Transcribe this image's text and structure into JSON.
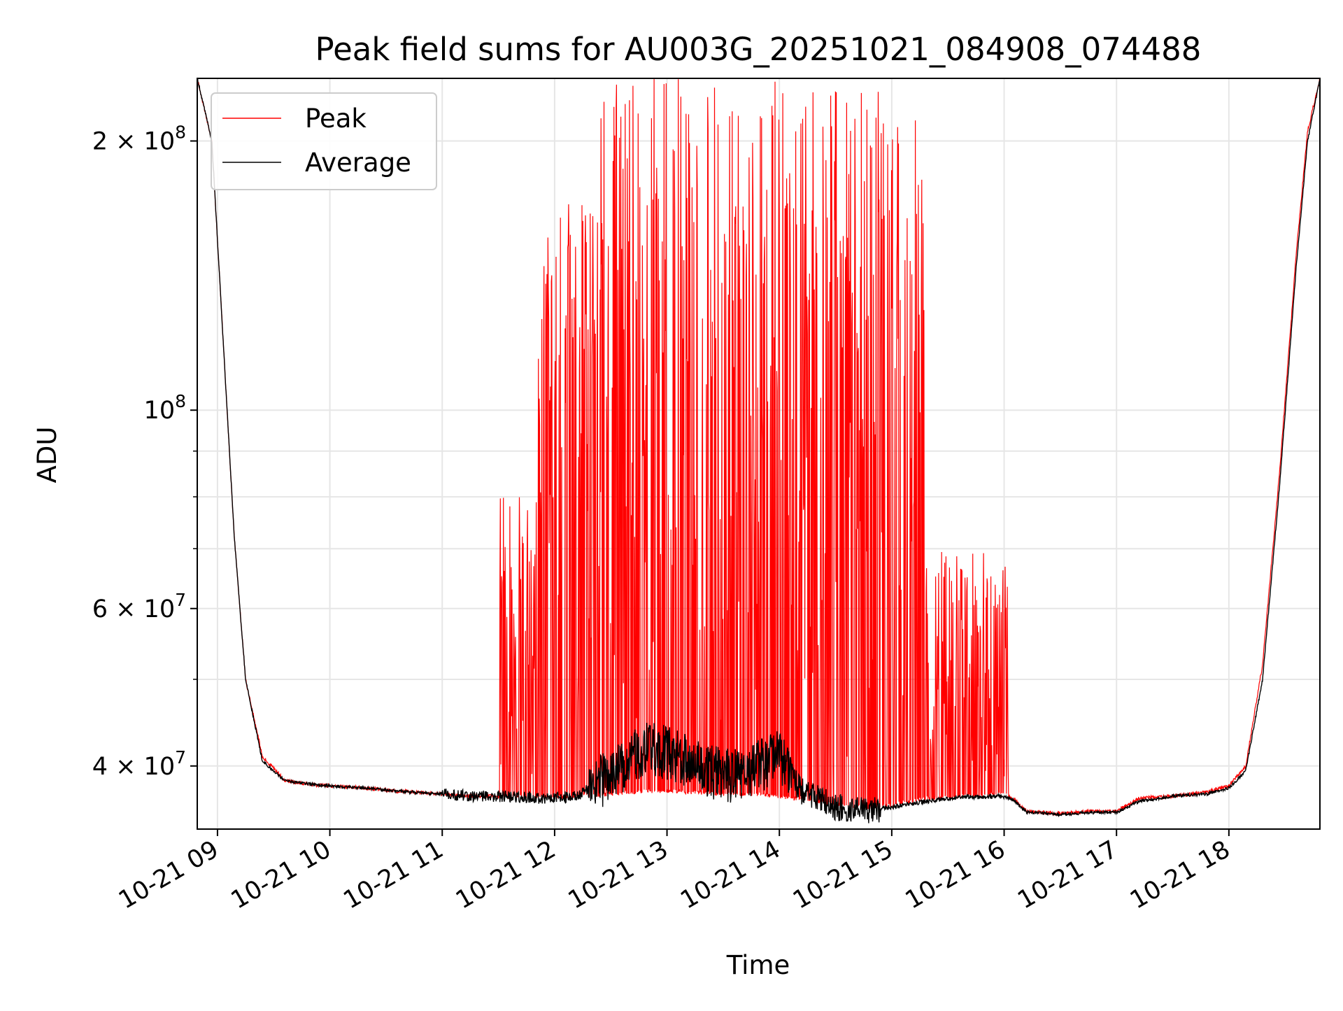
{
  "chart_data": {
    "type": "line",
    "title": "Peak field sums for AU003G_20251021_084908_074488",
    "xlabel": "Time",
    "ylabel": "ADU",
    "yscale": "log",
    "grid": true,
    "legend_position": "upper-left",
    "x_unit": "hour of day",
    "xlim": [
      8.82,
      18.81
    ],
    "ylim": [
      34000000,
      235000000
    ],
    "x_ticks": [
      {
        "value": 9,
        "label": "10-21 09"
      },
      {
        "value": 10,
        "label": "10-21 10"
      },
      {
        "value": 11,
        "label": "10-21 11"
      },
      {
        "value": 12,
        "label": "10-21 12"
      },
      {
        "value": 13,
        "label": "10-21 13"
      },
      {
        "value": 14,
        "label": "10-21 14"
      },
      {
        "value": 15,
        "label": "10-21 15"
      },
      {
        "value": 16,
        "label": "10-21 16"
      },
      {
        "value": 17,
        "label": "10-21 17"
      },
      {
        "value": 18,
        "label": "10-21 18"
      }
    ],
    "y_major_ticks": [
      {
        "value": 40000000,
        "base": "4 × 10",
        "exp": "7"
      },
      {
        "value": 60000000,
        "base": "6 × 10",
        "exp": "7"
      },
      {
        "value": 100000000,
        "base": "10",
        "exp": "8"
      },
      {
        "value": 200000000,
        "base": "2 × 10",
        "exp": "8"
      }
    ],
    "y_minor_ticks": [
      50000000,
      70000000,
      80000000,
      90000000
    ],
    "series": [
      {
        "name": "Peak",
        "color": "#ff0000",
        "baseline_x": [
          8.82,
          8.95,
          9.05,
          9.15,
          9.25,
          9.4,
          9.6,
          9.8,
          10.0,
          10.3,
          10.6,
          11.0,
          11.3,
          11.6,
          11.9,
          12.2,
          12.5,
          12.8,
          13.0,
          13.2,
          13.5,
          13.8,
          14.0,
          14.2,
          14.5,
          14.8,
          15.0,
          15.3,
          15.6,
          16.0,
          16.1,
          16.2,
          16.5,
          16.8,
          17.0,
          17.2,
          17.5,
          17.8,
          18.0,
          18.15,
          18.3,
          18.45,
          18.6,
          18.7,
          18.81
        ],
        "baseline_y": [
          235000000,
          200000000,
          120000000,
          72000000,
          50000000,
          41000000,
          38500000,
          38200000,
          38000000,
          37800000,
          37500000,
          37200000,
          37000000,
          37000000,
          36900000,
          37000000,
          37200000,
          37500000,
          37500000,
          37400000,
          37200000,
          37200000,
          37000000,
          36700000,
          36200000,
          36000000,
          36200000,
          36800000,
          37000000,
          37200000,
          36600000,
          35600000,
          35400000,
          35600000,
          35600000,
          36800000,
          37000000,
          37400000,
          38000000,
          40000000,
          52000000,
          85000000,
          150000000,
          205000000,
          235000000
        ],
        "spike_regions": [
          {
            "start": 11.5,
            "end": 11.85,
            "max": 80000000
          },
          {
            "start": 11.85,
            "end": 12.35,
            "max": 170000000
          },
          {
            "start": 12.35,
            "end": 14.2,
            "max": 235000000
          },
          {
            "start": 14.2,
            "end": 15.3,
            "max": 230000000
          },
          {
            "start": 15.3,
            "end": 16.05,
            "max": 70000000
          }
        ]
      },
      {
        "name": "Average",
        "color": "#000000",
        "x": [
          8.82,
          8.95,
          9.05,
          9.15,
          9.25,
          9.4,
          9.6,
          9.8,
          10.0,
          10.3,
          10.6,
          11.0,
          11.3,
          11.6,
          11.9,
          12.2,
          12.4,
          12.6,
          12.8,
          13.0,
          13.2,
          13.4,
          13.6,
          13.8,
          14.0,
          14.2,
          14.5,
          14.8,
          15.0,
          15.3,
          15.6,
          16.0,
          16.1,
          16.2,
          16.5,
          16.8,
          17.0,
          17.2,
          17.5,
          17.8,
          18.0,
          18.15,
          18.3,
          18.45,
          18.6,
          18.7,
          18.81
        ],
        "y": [
          235000000,
          200000000,
          120000000,
          72000000,
          50000000,
          40500000,
          38500000,
          38200000,
          38000000,
          37800000,
          37500000,
          37200000,
          37000000,
          37000000,
          36800000,
          37000000,
          38500000,
          40000000,
          42000000,
          41500000,
          40500000,
          39500000,
          39000000,
          40000000,
          41000000,
          37500000,
          36000000,
          35700000,
          36000000,
          36500000,
          36900000,
          37000000,
          36500000,
          35500000,
          35300000,
          35500000,
          35500000,
          36500000,
          37000000,
          37200000,
          37800000,
          39500000,
          50000000,
          82000000,
          145000000,
          200000000,
          235000000
        ],
        "noise_regions": [
          {
            "start": 11.0,
            "end": 12.3,
            "amp": 0.015
          },
          {
            "start": 12.3,
            "end": 14.1,
            "amp": 0.07
          },
          {
            "start": 14.1,
            "end": 14.9,
            "amp": 0.035
          },
          {
            "start": 14.9,
            "end": 16.0,
            "amp": 0.006
          }
        ]
      }
    ]
  }
}
